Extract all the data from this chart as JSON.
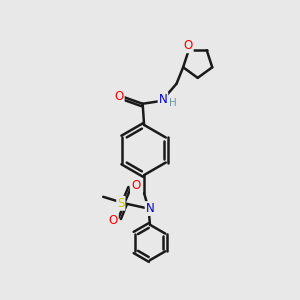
{
  "background_color": "#e8e8e8",
  "bond_color": "#1a1a1a",
  "atom_colors": {
    "O": "#ff0000",
    "N": "#0000cc",
    "S": "#cccc00",
    "H": "#6699aa",
    "C": "#1a1a1a"
  },
  "figsize": [
    3.0,
    3.0
  ],
  "dpi": 100
}
